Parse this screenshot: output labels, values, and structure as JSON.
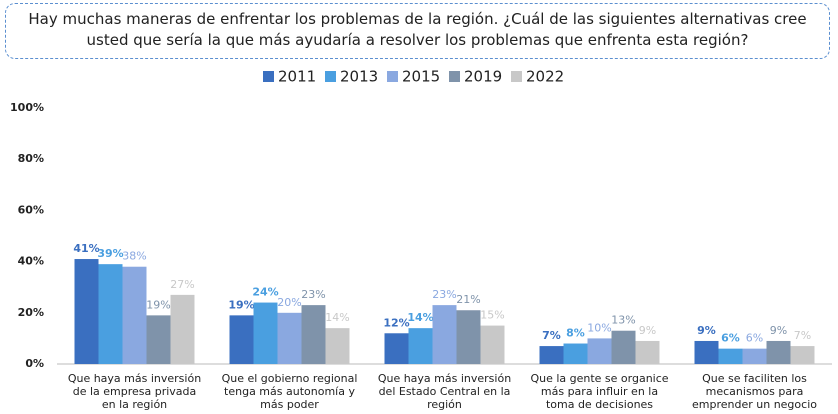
{
  "chart_data": {
    "type": "bar",
    "title": "Hay muchas maneras de enfrentar los problemas de la región. ¿Cuál de las siguientes alternativas cree usted que sería la que más ayudaría a resolver los problemas que enfrenta esta región?",
    "categories": [
      "Que haya más inversión de la empresa privada en la región",
      "Que el gobierno regional tenga más autonomía y más poder",
      "Que haya más inversión del Estado Central en la región",
      "Que la gente se organice más para influir en la toma de decisiones",
      "Que se faciliten los mecanismos para emprender un negocio"
    ],
    "series": [
      {
        "name": "2011",
        "color": "#3a6fc0",
        "values": [
          41,
          19,
          12,
          7,
          9
        ],
        "value_labels": [
          "41%",
          "19%",
          "12%",
          "7%",
          "9%"
        ]
      },
      {
        "name": "2013",
        "color": "#4a9fe0",
        "values": [
          39,
          24,
          14,
          8,
          6
        ],
        "value_labels": [
          "39%",
          "24%",
          "14%",
          "8%",
          "6%"
        ]
      },
      {
        "name": "2015",
        "color": "#8aa8e0",
        "values": [
          38,
          20,
          23,
          10,
          6
        ],
        "value_labels": [
          "38%",
          "20%",
          "23%",
          "10%",
          "6%"
        ]
      },
      {
        "name": "2019",
        "color": "#7f93aa",
        "values": [
          19,
          23,
          21,
          13,
          9
        ],
        "value_labels": [
          "19%",
          "23%",
          "21%",
          "13%",
          "9%"
        ]
      },
      {
        "name": "2022",
        "color": "#c8c8c8",
        "values": [
          27,
          14,
          15,
          9,
          7
        ],
        "value_labels": [
          "27%",
          "14%",
          "15%",
          "9%",
          "7%"
        ]
      }
    ],
    "ylim": [
      0,
      100
    ],
    "yticks": [
      {
        "value": 0,
        "label": "0%"
      },
      {
        "value": 20,
        "label": "20%"
      },
      {
        "value": 40,
        "label": "40%"
      },
      {
        "value": 60,
        "label": "60%"
      },
      {
        "value": 80,
        "label": "80%"
      },
      {
        "value": 100,
        "label": "100%"
      }
    ],
    "legend": "top",
    "grid": false
  }
}
